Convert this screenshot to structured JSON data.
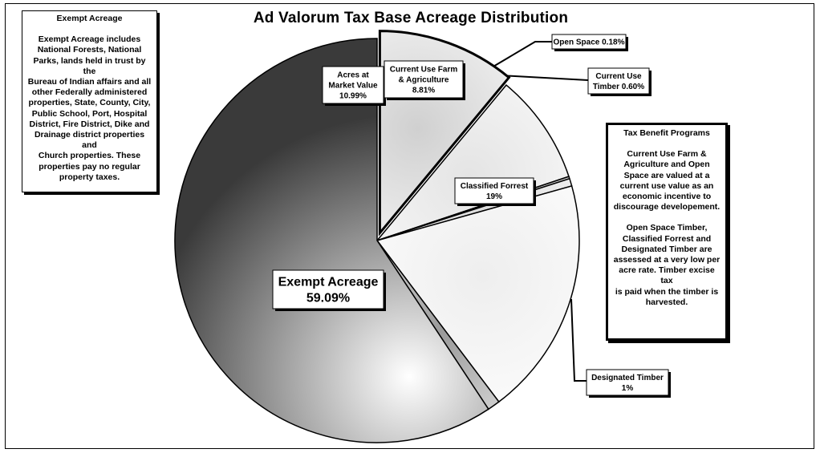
{
  "title": "Ad Valorum Tax Base Acreage Distribution",
  "notes": {
    "exempt": {
      "heading": "Exempt Acreage",
      "body": "Exempt Acreage includes\nNational Forests, National\nParks, lands held in trust by the\nBureau of Indian affairs and all\nother Federally administered\nproperties, State, County, City,\nPublic School, Port,  Hospital\nDistrict, Fire District, Dike and\nDrainage district properties and\nChurch properties. These\nproperties pay no regular\nproperty taxes."
    },
    "tax": {
      "heading": "Tax Benefit Programs",
      "body1": "Current Use Farm &\nAgriculture and Open\nSpace are valued at a\ncurrent use value as an\neconomic incentive to\ndiscourage developement.",
      "body2": "Open Space Timber,\nClassified Forrest and\nDesignated Timber are\nassessed at a very low per\nacre rate. Timber excise tax\nis paid when the timber is\nharvested."
    }
  },
  "chart_data": {
    "type": "pie",
    "title": "Ad Valorum Tax Base Acreage Distribution",
    "slices": [
      {
        "name": "Acres at Market Value",
        "value": 10.99,
        "label_lines": [
          "Acres at",
          "Market Value",
          "10.99%"
        ],
        "exploded": true,
        "color": "#d0d0d0"
      },
      {
        "name": "Current Use Farm & Agriculture",
        "value": 8.81,
        "label_lines": [
          "Current Use Farm",
          "& Agriculture",
          "8.81%"
        ],
        "exploded": false,
        "color": "#e4e4e4"
      },
      {
        "name": "Open Space",
        "value": 0.18,
        "label_lines": [
          "Open Space 0.18%"
        ],
        "exploded": false,
        "color": "#a8a8a8"
      },
      {
        "name": "Current Use Timber",
        "value": 0.6,
        "label_lines": [
          "Current Use",
          "Timber 0.60%"
        ],
        "exploded": false,
        "color": "#dcdcdc"
      },
      {
        "name": "Classified Forrest",
        "value": 19,
        "label_lines": [
          "Classified Forrest",
          "19%"
        ],
        "exploded": false,
        "color": "#eeeeee"
      },
      {
        "name": "Designated Timber",
        "value": 1,
        "label_lines": [
          "Designated Timber",
          "1%"
        ],
        "exploded": false,
        "color": "#9a9a9a"
      },
      {
        "name": "Exempt Acreage",
        "value": 59.09,
        "label_lines": [
          "Exempt Acreage",
          "59.09%"
        ],
        "exploded": false,
        "color": "#bdbdbd"
      }
    ]
  }
}
